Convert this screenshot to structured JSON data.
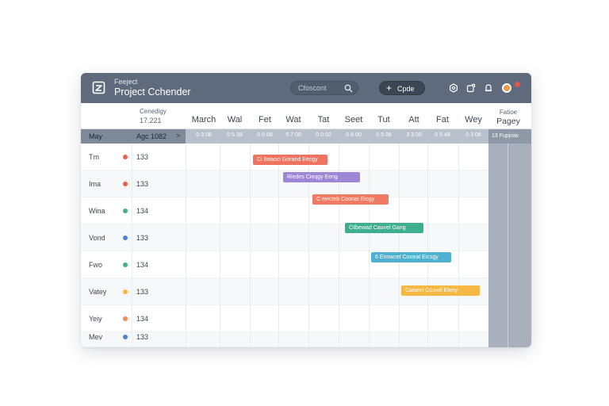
{
  "app": {
    "subtitle": "Feeject",
    "title": "Project Cchender",
    "search_placeholder": "Cfoscont",
    "create_label": "Cpde"
  },
  "header": {
    "side_caption": "Cenedigy",
    "side_date": "17.221",
    "days": [
      "March",
      "Wal",
      "Fet",
      "Wat",
      "Tat",
      "Seet",
      "Tut",
      "Att",
      "Fat",
      "Wey"
    ],
    "right_caption": "Fatioe",
    "right_label": "Pagey"
  },
  "sub_header": {
    "left_label": "May",
    "left_date": "Agc 1082",
    "chevron": ">",
    "cells": [
      "0 3 08",
      "0 5 38",
      "0 0 08",
      "5 7 00",
      "0 0 02",
      "0 8 00",
      "0 5 08",
      "3 3 00",
      "0 5 48",
      "0 3 08"
    ],
    "right_label": "13 Fupjniw"
  },
  "rows": [
    {
      "label": "Tm",
      "time": "133",
      "dot_color": "#e8604c"
    },
    {
      "label": "Ima",
      "time": "133",
      "dot_color": "#e8604c"
    },
    {
      "label": "Wina",
      "time": "134",
      "dot_color": "#3fb08b"
    },
    {
      "label": "Vond",
      "time": "133",
      "dot_color": "#4a7fd1"
    },
    {
      "label": "Fwo",
      "time": "134",
      "dot_color": "#3fb08b"
    },
    {
      "label": "Vatey",
      "time": "133",
      "dot_color": "#f4b63c"
    },
    {
      "label": "Yeiy",
      "time": "134",
      "dot_color": "#f08a4b"
    },
    {
      "label": "Mev",
      "time": "133",
      "dot_color": "#4a7fd1"
    }
  ],
  "events": [
    {
      "label": "Ci Beaoci Gorand Eecgy",
      "color": "#f07260"
    },
    {
      "label": "Riedes Cieqgy Eeng",
      "color": "#9e86d6"
    },
    {
      "label": "C ewcteb Coonat Eiogy",
      "color": "#f07a62"
    },
    {
      "label": "Cilbewad Cauvel Gang",
      "color": "#3fae90"
    },
    {
      "label": "6 Ennwcet Coneat Eicsgy",
      "color": "#4fb0cf"
    },
    {
      "label": "Caiseel Ccuvel Eleny",
      "color": "#f5b845"
    }
  ],
  "icons": {
    "logo": "calendar-logo-icon",
    "search": "search-icon",
    "plus": "plus-icon",
    "toolbar": [
      "settings-icon",
      "share-icon",
      "bell-icon"
    ]
  }
}
